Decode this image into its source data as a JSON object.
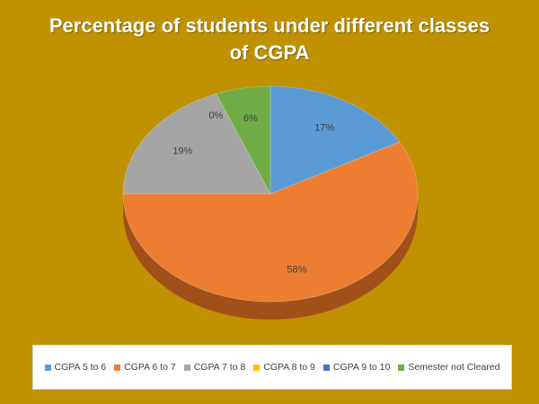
{
  "chart_data": {
    "type": "pie",
    "title_lines": [
      "Percentage of students under different classes",
      "of CGPA"
    ],
    "slices": [
      {
        "label": "CGPA 5 to 6",
        "value": 17,
        "data_label": "17%",
        "color": "#5b9bd5",
        "side": "#3f78b0"
      },
      {
        "label": "CGPA 6 to 7",
        "value": 58,
        "data_label": "58%",
        "color": "#ed7d31",
        "side": "#a2501a"
      },
      {
        "label": "CGPA 7 to 8",
        "value": 19,
        "data_label": "19%",
        "color": "#a5a5a5",
        "side": "#707070"
      },
      {
        "label": "CGPA 8 to 9",
        "value": 0,
        "data_label": "0%",
        "color": "#ffc000",
        "side": "#b08400"
      },
      {
        "label": "CGPA 9 to 10",
        "value": 0,
        "data_label": "",
        "color": "#4472c4",
        "side": "#2d4f8a"
      },
      {
        "label": "Semester not Cleared",
        "value": 6,
        "data_label": "6%",
        "color": "#70ad47",
        "side": "#4c7a2e"
      }
    ],
    "legend_position": "bottom"
  },
  "colors": {
    "background": "#c09100",
    "title": "#ffffff"
  }
}
